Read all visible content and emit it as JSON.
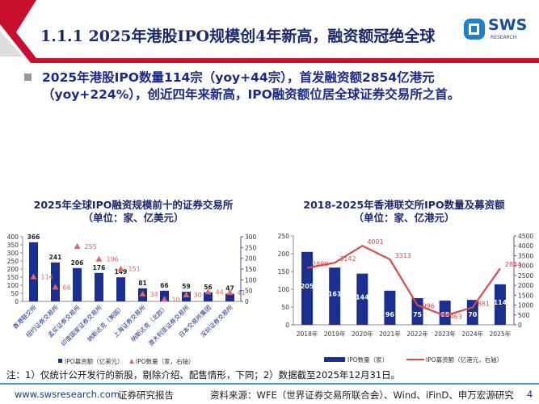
{
  "header": {
    "title": "1.1.1 2025年港股IPO规模创4年新高，融资额冠绝全球",
    "logo_text": "SWS",
    "logo_sub": "RESEARCH",
    "colors": {
      "red": "#c8102e",
      "navy": "#1a2a6e"
    }
  },
  "bullet": {
    "text": "2025年港股IPO数量114宗（yoy+44宗），首发融资额2854亿港元（yoy+224%），创近四年来新高，IPO融资额位居全球证券交易所之首。"
  },
  "chart_data": [
    {
      "type": "bar",
      "title": "2025年全球IPO融资规模前十的证券交易所",
      "subtitle": "（单位：家、亿美元）",
      "categories": [
        "香港联交所",
        "纽约证券交易所",
        "孟买证券交易所",
        "印度国家证券交易所",
        "纳斯达克（美国）",
        "上海证券交易所",
        "纳斯达克（北欧）",
        "澳大利亚证券交易所",
        "日本交易所集团",
        "深圳证券交易所"
      ],
      "series": [
        {
          "name": "IPO募资额（亿美元）",
          "type": "bar",
          "axis": "left",
          "color": "#1a2f8f",
          "values": [
            366,
            241,
            206,
            176,
            149,
            81,
            66,
            59,
            56,
            47
          ]
        },
        {
          "name": "IPO数量（家，右轴）",
          "type": "scatter",
          "marker": "triangle",
          "axis": "right",
          "color": "#e06666",
          "values": [
            114,
            66,
            255,
            196,
            151,
            34,
            10,
            30,
            44,
            41
          ]
        }
      ],
      "ylim_left": [
        0,
        400
      ],
      "yticks_left": [
        0,
        50,
        100,
        150,
        200,
        250,
        300,
        350,
        400
      ],
      "ylim_right": [
        0,
        300
      ],
      "yticks_right": [
        0,
        50,
        100,
        150,
        200,
        250,
        300
      ],
      "legend": "bottom"
    },
    {
      "type": "bar",
      "title": "2018-2025年香港联交所IPO数量及募资额",
      "subtitle": "（单位：家、亿港元）",
      "categories": [
        "2018年",
        "2019年",
        "2020年",
        "2021年",
        "2022年",
        "2023年",
        "2024年",
        "2025年"
      ],
      "series": [
        {
          "name": "IPO数量（家）",
          "type": "bar",
          "axis": "left",
          "color": "#1a2f8f",
          "values": [
            205,
            161,
            144,
            96,
            75,
            68,
            70,
            114
          ]
        },
        {
          "name": "IPO募资额（亿港元，右轴）",
          "type": "line",
          "axis": "right",
          "color": "#e04848",
          "values": [
            2880,
            3142,
            4001,
            3313,
            996,
            463,
            881,
            2854
          ]
        }
      ],
      "ylim_left": [
        0,
        250
      ],
      "yticks_left": [
        0,
        50,
        100,
        150,
        200,
        250
      ],
      "ylim_right": [
        0,
        4500
      ],
      "yticks_right": [
        0,
        500,
        1000,
        1500,
        2000,
        2500,
        3000,
        3500,
        4000,
        4500
      ],
      "legend": "bottom"
    }
  ],
  "note": "注：1）仅统计公开发行的新股，剔除介绍、配售情形，下同；2）数据截至2025年12月31日。",
  "footer": {
    "website": "www.swsresearch.com",
    "report_type": "证券研究报告",
    "source": "资料来源：WFE（世界证券交易所联合会）、Wind、iFinD、申万宏源研究",
    "page": "4"
  }
}
